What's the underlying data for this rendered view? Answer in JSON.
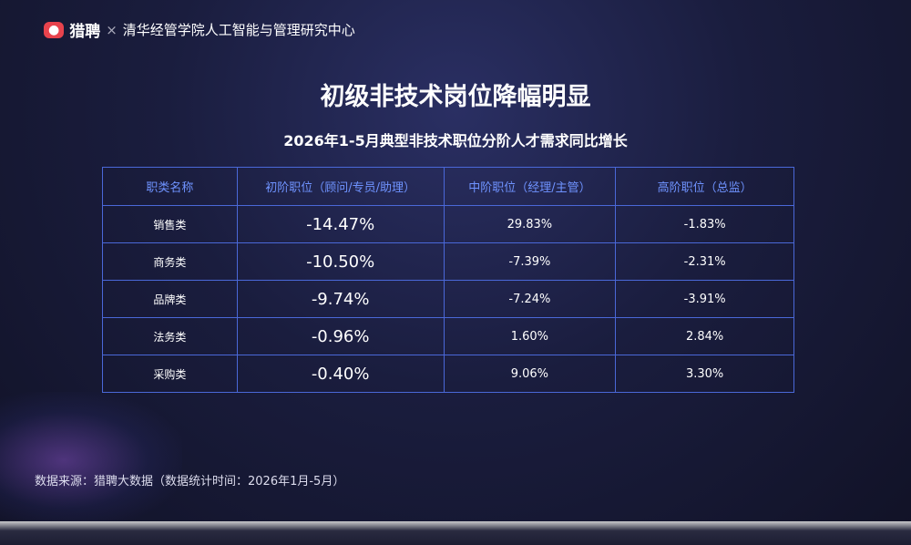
{
  "header": {
    "brand": "猎聘",
    "separator": "×",
    "partner": "清华经管学院人工智能与管理研究中心"
  },
  "title": "初级非技术岗位降幅明显",
  "subtitle": "2026年1-5月典型非技术职位分阶人才需求同比增长",
  "table": {
    "headers": [
      "职类名称",
      "初阶职位（顾问/专员/助理）",
      "中阶职位（经理/主管）",
      "高阶职位（总监）"
    ],
    "rows": [
      [
        "销售类",
        "-14.47%",
        "29.83%",
        "-1.83%"
      ],
      [
        "商务类",
        "-10.50%",
        "-7.39%",
        "-2.31%"
      ],
      [
        "品牌类",
        "-9.74%",
        "-7.24%",
        "-3.91%"
      ],
      [
        "法务类",
        "-0.96%",
        "1.60%",
        "2.84%"
      ],
      [
        "采购类",
        "-0.40%",
        "9.06%",
        "3.30%"
      ]
    ]
  },
  "source": "数据来源：猎聘大数据（数据统计时间：2026年1月-5月）"
}
